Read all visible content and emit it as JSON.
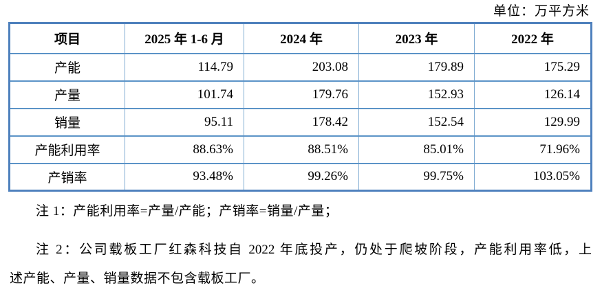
{
  "unit_label": "单位：万平方米",
  "table": {
    "headers": [
      "项目",
      "2025 年 1-6 月",
      "2024 年",
      "2023 年",
      "2022 年"
    ],
    "rows": [
      {
        "label": "产能",
        "values": [
          "114.79",
          "203.08",
          "179.89",
          "175.29"
        ]
      },
      {
        "label": "产量",
        "values": [
          "101.74",
          "179.76",
          "152.93",
          "126.14"
        ]
      },
      {
        "label": "销量",
        "values": [
          "95.11",
          "178.42",
          "152.54",
          "129.99"
        ]
      },
      {
        "label": "产能利用率",
        "values": [
          "88.63%",
          "88.51%",
          "85.01%",
          "71.96%"
        ]
      },
      {
        "label": "产销率",
        "values": [
          "93.48%",
          "99.26%",
          "99.75%",
          "103.05%"
        ]
      }
    ]
  },
  "notes": {
    "note1": "注 1：产能利用率=产量/产能；产销率=销量/产量；",
    "note2_line1": "注 2：公司载板工厂红森科技自 2022 年底投产，仍处于爬坡阶段，产能利用率低，上",
    "note2_line2": "述产能、产量、销量数据不包含载板工厂。"
  },
  "colors": {
    "table_border_outer": "#4f81bd",
    "table_border_inner_horizontal": "#5b93c7",
    "table_border_inner_vertical": "#7fabd2",
    "text": "#000000",
    "background": "#ffffff"
  }
}
